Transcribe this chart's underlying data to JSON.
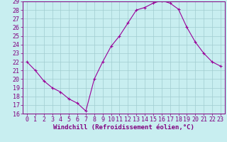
{
  "hours": [
    0,
    1,
    2,
    3,
    4,
    5,
    6,
    7,
    8,
    9,
    10,
    11,
    12,
    13,
    14,
    15,
    16,
    17,
    18,
    19,
    20,
    21,
    22,
    23
  ],
  "values": [
    22.0,
    21.0,
    19.8,
    19.0,
    18.5,
    17.7,
    17.2,
    16.3,
    20.0,
    22.0,
    23.8,
    25.0,
    26.5,
    28.0,
    28.3,
    28.8,
    29.1,
    28.8,
    28.1,
    26.0,
    24.3,
    23.0,
    22.0,
    21.5
  ],
  "line_color": "#990099",
  "marker": "+",
  "bg_color": "#c8eef0",
  "grid_color": "#a0ccd0",
  "axis_color": "#800080",
  "tick_color": "#800080",
  "xlabel": "Windchill (Refroidissement éolien,°C)",
  "ylim": [
    16,
    29
  ],
  "xlim": [
    -0.5,
    23.5
  ],
  "yticks": [
    16,
    17,
    18,
    19,
    20,
    21,
    22,
    23,
    24,
    25,
    26,
    27,
    28,
    29
  ],
  "xticks": [
    0,
    1,
    2,
    3,
    4,
    5,
    6,
    7,
    8,
    9,
    10,
    11,
    12,
    13,
    14,
    15,
    16,
    17,
    18,
    19,
    20,
    21,
    22,
    23
  ],
  "tick_fontsize": 6.0,
  "xlabel_fontsize": 6.5
}
